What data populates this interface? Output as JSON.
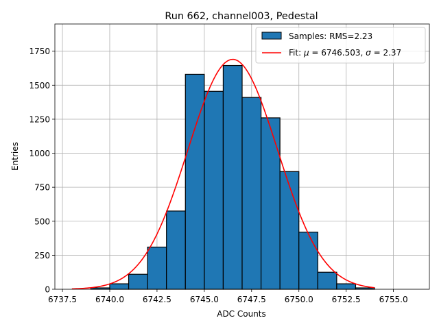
{
  "chart_data": {
    "type": "bar",
    "title": "Run 662, channel003, Pedestal",
    "xlabel": "ADC Counts",
    "ylabel": "Entries",
    "xlim": [
      6737.1,
      6756.9
    ],
    "ylim": [
      0,
      1950
    ],
    "grid": true,
    "legend_position": "upper right",
    "x_ticks": [
      6737.5,
      6740.0,
      6742.5,
      6745.0,
      6747.5,
      6750.0,
      6752.5,
      6755.0
    ],
    "x_tick_labels": [
      "6737.5",
      "6740.0",
      "6742.5",
      "6745.0",
      "6747.5",
      "6750.0",
      "6752.5",
      "6755.0"
    ],
    "y_ticks": [
      0,
      250,
      500,
      750,
      1000,
      1250,
      1500,
      1750
    ],
    "y_tick_labels": [
      "0",
      "250",
      "500",
      "750",
      "1000",
      "1250",
      "1500",
      "1750"
    ],
    "bin_edges": [
      6738,
      6739,
      6740,
      6741,
      6742,
      6743,
      6744,
      6745,
      6746,
      6747,
      6748,
      6749,
      6750,
      6751,
      6752,
      6753,
      6754,
      6755,
      6756
    ],
    "values": [
      0,
      10,
      40,
      110,
      310,
      575,
      1580,
      1455,
      1645,
      1410,
      1260,
      865,
      420,
      125,
      40,
      10,
      0,
      0
    ],
    "series": [
      {
        "name": "Samples: RMS=2.23",
        "kind": "histogram",
        "color": "#1f77b4",
        "edgecolor": "#000000"
      },
      {
        "name": "Fit: μ = 6746.503, σ = 2.37",
        "kind": "gaussian-fit",
        "color": "#ff0000",
        "mu": 6746.503,
        "sigma": 2.37,
        "amplitude": 1690,
        "x_range": [
          6738,
          6754
        ]
      }
    ],
    "legend": {
      "samples_label": "Samples: RMS=2.23",
      "fit_label_prefix": "Fit: ",
      "fit_mu_symbol": "μ",
      "fit_mu_text": " = 6746.503, ",
      "fit_sigma_symbol": "σ",
      "fit_sigma_text": " = 2.37"
    }
  }
}
